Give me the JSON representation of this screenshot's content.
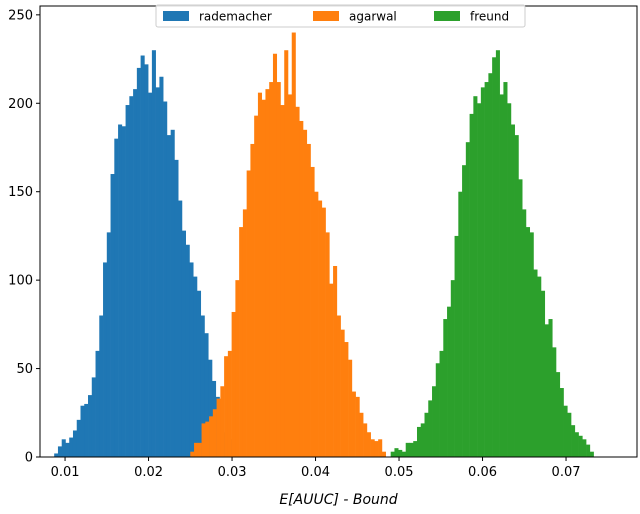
{
  "chart_data": {
    "type": "bar",
    "subtype": "histogram",
    "xlabel": "E[AUUC] - Bound",
    "ylabel": "",
    "xlim": [
      0.007,
      0.0785
    ],
    "ylim": [
      0,
      255
    ],
    "xticks": [
      0.01,
      0.02,
      0.03,
      0.04,
      0.05,
      0.06,
      0.07
    ],
    "xtick_labels": [
      "0.01",
      "0.02",
      "0.03",
      "0.04",
      "0.05",
      "0.06",
      "0.07"
    ],
    "yticks": [
      0,
      50,
      100,
      150,
      200,
      250
    ],
    "ytick_labels": [
      "0",
      "50",
      "100",
      "150",
      "200",
      "250"
    ],
    "grid": false,
    "legend_location": "upper center",
    "bin_width": 0.00045,
    "series": [
      {
        "name": "rademacher",
        "color": "#1f77b4",
        "start": 0.0087,
        "counts": [
          2,
          6,
          10,
          8,
          11,
          15,
          21,
          29,
          30,
          35,
          45,
          60,
          80,
          110,
          127,
          160,
          180,
          188,
          187,
          199,
          204,
          208,
          220,
          227,
          222,
          206,
          230,
          209,
          215,
          201,
          182,
          185,
          168,
          145,
          128,
          120,
          110,
          102,
          94,
          80,
          70,
          55,
          43,
          34,
          27,
          14,
          16,
          10,
          8
        ]
      },
      {
        "name": "agarwal",
        "color": "#ff7f0e",
        "start": 0.025,
        "counts": [
          3,
          8,
          8,
          19,
          20,
          23,
          27,
          33,
          40,
          57,
          60,
          82,
          100,
          130,
          140,
          162,
          177,
          193,
          206,
          202,
          208,
          212,
          228,
          212,
          199,
          230,
          205,
          240,
          198,
          190,
          185,
          177,
          164,
          150,
          145,
          141,
          127,
          98,
          108,
          80,
          72,
          65,
          55,
          37,
          34,
          25,
          19,
          14,
          10,
          9,
          10,
          3
        ]
      },
      {
        "name": "freund",
        "color": "#2ca02c",
        "start": 0.049,
        "counts": [
          3,
          5,
          4,
          3,
          8,
          8,
          9,
          17,
          19,
          25,
          32,
          40,
          53,
          60,
          78,
          85,
          100,
          125,
          150,
          165,
          178,
          194,
          204,
          200,
          209,
          212,
          217,
          226,
          230,
          205,
          212,
          200,
          188,
          182,
          157,
          140,
          130,
          127,
          106,
          102,
          94,
          75,
          78,
          62,
          48,
          39,
          29,
          25,
          18,
          14,
          12,
          10,
          7,
          3
        ]
      }
    ]
  }
}
